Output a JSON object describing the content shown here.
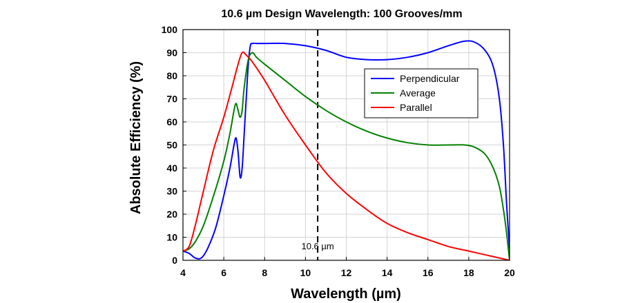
{
  "chart_data": {
    "type": "line",
    "title": "10.6 µm Design Wavelength: 100 Grooves/mm",
    "xlabel": "Wavelength (µm)",
    "ylabel": "Absolute Efficiency (%)",
    "xlim": [
      4,
      20
    ],
    "ylim": [
      0,
      100
    ],
    "xticks": [
      4,
      6,
      8,
      10,
      12,
      14,
      16,
      18,
      20
    ],
    "yticks": [
      0,
      10,
      20,
      30,
      40,
      50,
      60,
      70,
      80,
      90,
      100
    ],
    "grid": true,
    "legend_position": "top-right",
    "series": [
      {
        "name": "Perpendicular",
        "color": "#0000ff",
        "points": [
          [
            4.0,
            4
          ],
          [
            4.3,
            3
          ],
          [
            4.6,
            1
          ],
          [
            4.9,
            1
          ],
          [
            5.2,
            5
          ],
          [
            5.6,
            14
          ],
          [
            6.0,
            28
          ],
          [
            6.3,
            40
          ],
          [
            6.5,
            50
          ],
          [
            6.6,
            53
          ],
          [
            6.7,
            47
          ],
          [
            6.8,
            36
          ],
          [
            6.9,
            40
          ],
          [
            7.0,
            55
          ],
          [
            7.1,
            70
          ],
          [
            7.2,
            85
          ],
          [
            7.3,
            93
          ],
          [
            7.4,
            94
          ],
          [
            7.6,
            94
          ],
          [
            8.0,
            94
          ],
          [
            9.0,
            94
          ],
          [
            10.0,
            93
          ],
          [
            11.0,
            91
          ],
          [
            12.0,
            88
          ],
          [
            13.0,
            87
          ],
          [
            14.0,
            87
          ],
          [
            15.0,
            88
          ],
          [
            16.0,
            90
          ],
          [
            17.0,
            93
          ],
          [
            17.8,
            95
          ],
          [
            18.3,
            94.5
          ],
          [
            18.8,
            91
          ],
          [
            19.2,
            84
          ],
          [
            19.5,
            70
          ],
          [
            19.7,
            50
          ],
          [
            19.85,
            25
          ],
          [
            20.0,
            5
          ]
        ]
      },
      {
        "name": "Average",
        "color": "#008000",
        "points": [
          [
            4.0,
            4
          ],
          [
            4.3,
            5
          ],
          [
            4.6,
            8
          ],
          [
            5.0,
            15
          ],
          [
            5.5,
            28
          ],
          [
            6.0,
            43
          ],
          [
            6.3,
            55
          ],
          [
            6.5,
            65
          ],
          [
            6.6,
            68
          ],
          [
            6.7,
            65
          ],
          [
            6.8,
            62
          ],
          [
            6.9,
            65
          ],
          [
            7.0,
            75
          ],
          [
            7.2,
            87
          ],
          [
            7.4,
            90
          ],
          [
            7.6,
            88
          ],
          [
            8.0,
            85
          ],
          [
            9.0,
            78
          ],
          [
            10.0,
            71
          ],
          [
            11.0,
            65
          ],
          [
            12.0,
            60
          ],
          [
            13.0,
            56
          ],
          [
            14.0,
            53
          ],
          [
            15.0,
            51
          ],
          [
            16.0,
            50
          ],
          [
            17.0,
            50
          ],
          [
            17.8,
            50
          ],
          [
            18.3,
            49
          ],
          [
            18.8,
            46
          ],
          [
            19.2,
            40
          ],
          [
            19.5,
            32
          ],
          [
            19.7,
            22
          ],
          [
            19.85,
            12
          ],
          [
            20.0,
            0
          ]
        ]
      },
      {
        "name": "Parallel",
        "color": "#ff0000",
        "points": [
          [
            4.0,
            4
          ],
          [
            4.3,
            6
          ],
          [
            4.6,
            15
          ],
          [
            5.0,
            30
          ],
          [
            5.5,
            48
          ],
          [
            6.0,
            62
          ],
          [
            6.4,
            75
          ],
          [
            6.7,
            85
          ],
          [
            6.9,
            90
          ],
          [
            7.1,
            89
          ],
          [
            7.4,
            86
          ],
          [
            8.0,
            78
          ],
          [
            9.0,
            63
          ],
          [
            10.0,
            50
          ],
          [
            11.0,
            38
          ],
          [
            12.0,
            29
          ],
          [
            13.0,
            22
          ],
          [
            14.0,
            16
          ],
          [
            15.0,
            12
          ],
          [
            16.0,
            9
          ],
          [
            17.0,
            6
          ],
          [
            18.0,
            4
          ],
          [
            19.0,
            2
          ],
          [
            20.0,
            0
          ]
        ]
      }
    ],
    "annotations": [
      {
        "type": "vline",
        "x": 10.6,
        "style": "dashed",
        "color": "#000000",
        "label": "10.6 µm"
      }
    ]
  }
}
